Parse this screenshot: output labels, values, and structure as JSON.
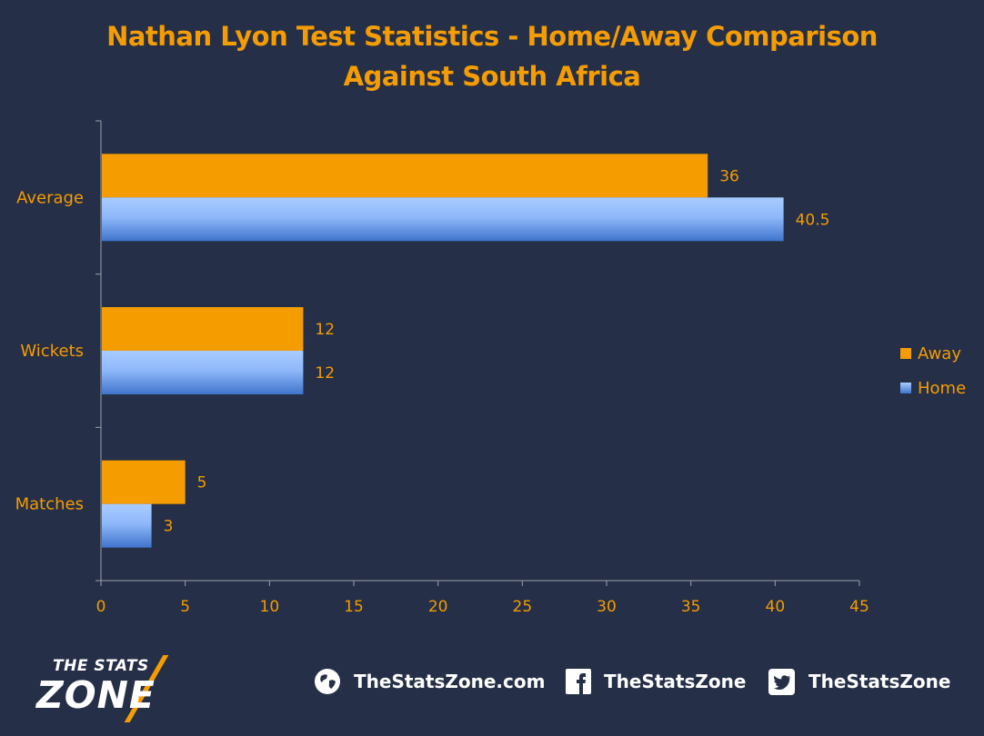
{
  "chart_data": {
    "type": "bar",
    "orientation": "horizontal",
    "title": "Nathan Lyon Test Statistics - Home/Away Comparison",
    "subtitle": "Against South Africa",
    "categories": [
      "Average",
      "Wickets",
      "Matches"
    ],
    "series": [
      {
        "name": "Away",
        "values": [
          36,
          12,
          5
        ],
        "labels": [
          "36",
          "12",
          "5"
        ],
        "color": "#f59c00"
      },
      {
        "name": "Home",
        "values": [
          40.5,
          12,
          3
        ],
        "labels": [
          "40.5",
          "12",
          "3"
        ],
        "color": "#5a8fe0"
      }
    ],
    "xlim": [
      0,
      45
    ],
    "xticks": [
      "0",
      "5",
      "10",
      "15",
      "20",
      "25",
      "30",
      "35",
      "40",
      "45"
    ],
    "grid": false,
    "legend_position": "right"
  },
  "footer": {
    "logo_top": "THE STATS",
    "logo_bottom": "ZONE",
    "website": "TheStatsZone.com",
    "facebook": "TheStatsZone",
    "twitter": "TheStatsZone"
  },
  "icons": {
    "website": "globe-icon",
    "facebook": "facebook-icon",
    "twitter": "twitter-icon"
  },
  "colors": {
    "background": "#252f47",
    "accent": "#f59c00",
    "home_light": "#a4c8ff",
    "home_dark": "#4a7fd6"
  }
}
